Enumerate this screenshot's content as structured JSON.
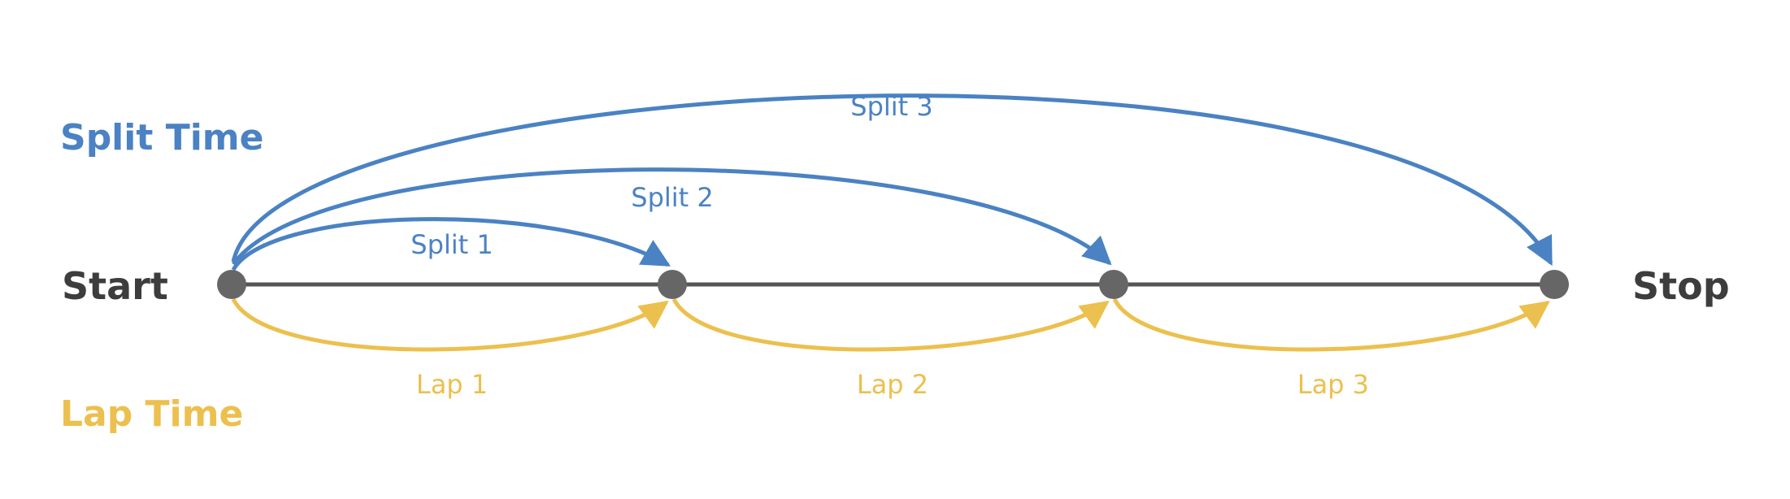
{
  "colors": {
    "split": "#4a82c3",
    "lap": "#ecc04e",
    "track": "#555555",
    "node": "#666666",
    "endpoint_text": "#3d3d3d"
  },
  "legend": {
    "split_title": "Split Time",
    "lap_title": "Lap Time"
  },
  "endpoints": {
    "start": "Start",
    "stop": "Stop"
  },
  "splits": [
    {
      "label": "Split 1",
      "to": 1
    },
    {
      "label": "Split 2",
      "to": 2
    },
    {
      "label": "Split 3",
      "to": 3
    }
  ],
  "laps": [
    {
      "label": "Lap 1",
      "from": 0,
      "to": 1
    },
    {
      "label": "Lap 2",
      "from": 1,
      "to": 2
    },
    {
      "label": "Lap 3",
      "from": 2,
      "to": 3
    }
  ],
  "node_count": 4
}
